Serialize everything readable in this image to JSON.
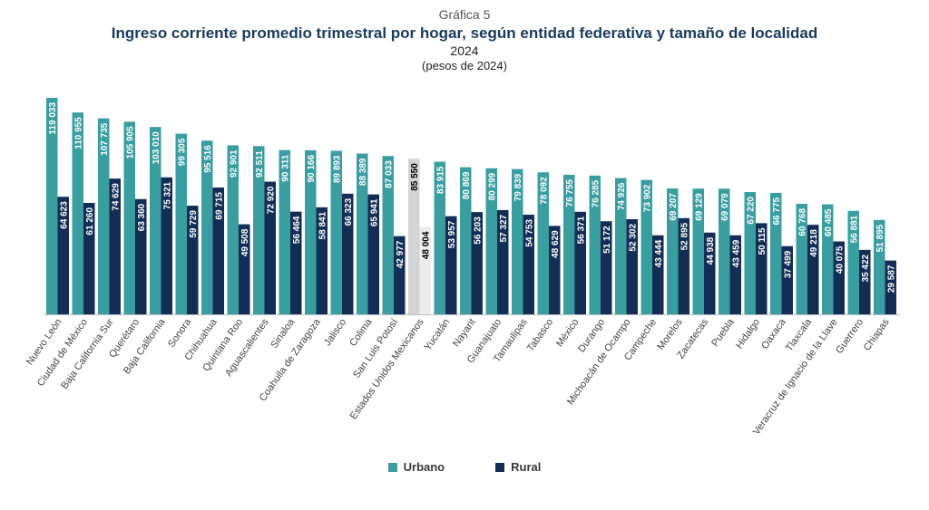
{
  "header": {
    "label": "Gráfica 5",
    "title": "Ingreso corriente promedio trimestral por hogar, según entidad federativa y tamaño de localidad",
    "year": "2024",
    "units": "(pesos de 2024)"
  },
  "colors": {
    "urbano": "#3a9ea0",
    "rural": "#132d55",
    "national_urbano": "#d3d3d3",
    "national_rural": "#ececec"
  },
  "chart_data": {
    "type": "bar",
    "title": "Ingreso corriente promedio trimestral por hogar, según entidad federativa y tamaño de localidad",
    "ylim": [
      0,
      125000
    ],
    "grid": false,
    "legend_position": "bottom",
    "highlight_category": "Estados Unidos Mexicanos",
    "categories": [
      "Nuevo León",
      "Ciudad de México",
      "Baja California Sur",
      "Querétaro",
      "Baja California",
      "Sonora",
      "Chihuahua",
      "Quintana Roo",
      "Aguascalientes",
      "Sinaloa",
      "Coahuila de Zaragoza",
      "Jalisco",
      "Colima",
      "San Luis Potosí",
      "Estados Unidos Mexicanos",
      "Yucatán",
      "Nayarit",
      "Guanajuato",
      "Tamaulipas",
      "Tabasco",
      "México",
      "Durango",
      "Michoacán de Ocampo",
      "Campeche",
      "Morelos",
      "Zacatecas",
      "Puebla",
      "Hidalgo",
      "Oaxaca",
      "Tlaxcala",
      "Veracruz de Ignacio de la Llave",
      "Guerrero",
      "Chiapas"
    ],
    "series": [
      {
        "name": "Urbano",
        "values": [
          119033,
          110955,
          107735,
          105905,
          103010,
          99305,
          95516,
          92901,
          92511,
          90311,
          90166,
          89893,
          88389,
          87033,
          85550,
          83915,
          80869,
          80299,
          79839,
          78092,
          76755,
          76285,
          74926,
          73902,
          69207,
          69129,
          69079,
          67220,
          66775,
          60768,
          60485,
          56881,
          51895
        ],
        "labels": [
          "119 033",
          "110 955",
          "107 735",
          "105 905",
          "103 010",
          "99 305",
          "95 516",
          "92 901",
          "92 511",
          "90 311",
          "90 166",
          "89 893",
          "88 389",
          "87 033",
          "85 550",
          "83 915",
          "80 869",
          "80 299",
          "79 839",
          "78 092",
          "76 755",
          "76 285",
          "74 926",
          "73 902",
          "69 207",
          "69 129",
          "69 079",
          "67 220",
          "66 775",
          "60 768",
          "60 485",
          "56 881",
          "51 895"
        ]
      },
      {
        "name": "Rural",
        "values": [
          64623,
          61260,
          74629,
          63360,
          75321,
          59729,
          69715,
          49508,
          72920,
          56464,
          58841,
          66323,
          65941,
          42977,
          48004,
          53957,
          56203,
          57327,
          54753,
          48629,
          56371,
          51172,
          52302,
          43444,
          52895,
          44938,
          43459,
          50115,
          37499,
          49218,
          40075,
          35422,
          29587
        ],
        "labels": [
          "64 623",
          "61 260",
          "74 629",
          "63 360",
          "75 321",
          "59 729",
          "69 715",
          "49 508",
          "72 920",
          "56 464",
          "58 841",
          "66 323",
          "65 941",
          "42 977",
          "48 004",
          "53 957",
          "56 203",
          "57 327",
          "54 753",
          "48 629",
          "56 371",
          "51 172",
          "52 302",
          "43 444",
          "52 895",
          "44 938",
          "43 459",
          "50 115",
          "37 499",
          "49 218",
          "40 075",
          "35 422",
          "29 587"
        ]
      }
    ]
  }
}
